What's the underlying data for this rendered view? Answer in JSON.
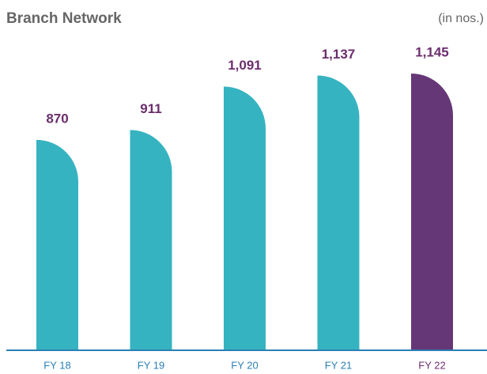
{
  "chart_data": {
    "type": "bar",
    "title": "Branch Network",
    "unit_label": "(in nos.)",
    "categories": [
      "FY 18",
      "FY 19",
      "FY 20",
      "FY 21",
      "FY 22"
    ],
    "values": [
      870,
      911,
      1091,
      1137,
      1145
    ],
    "value_labels": [
      "870",
      "911",
      "1,091",
      "1,137",
      "1,145"
    ],
    "colors": [
      "#36b3c0",
      "#36b3c0",
      "#36b3c0",
      "#36b3c0",
      "#663777"
    ]
  }
}
